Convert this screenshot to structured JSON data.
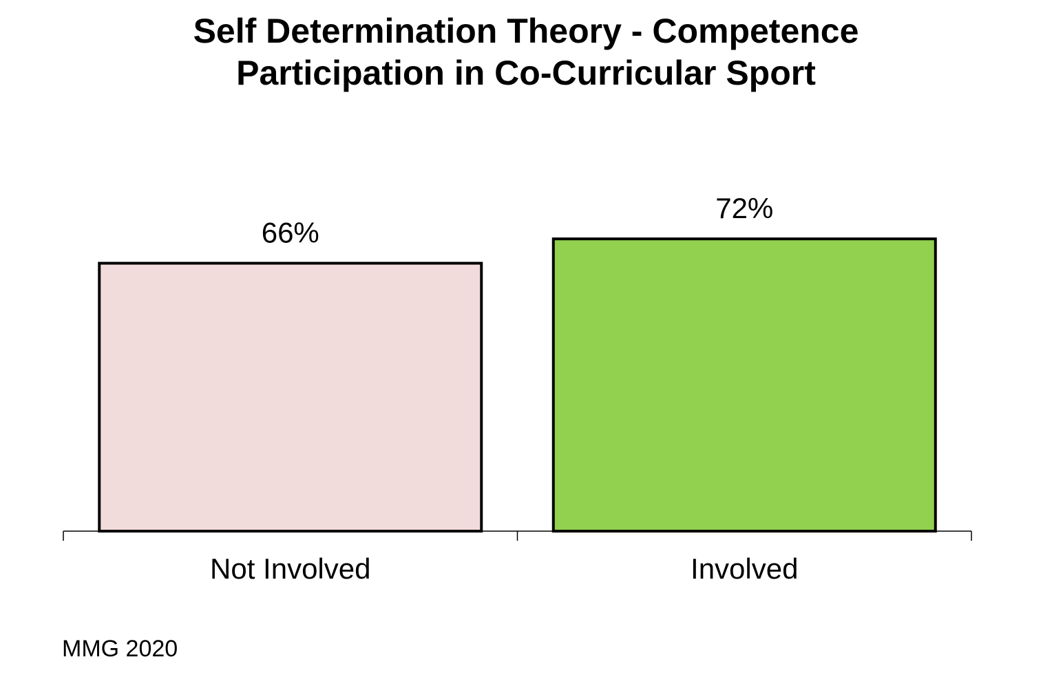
{
  "chart_data": {
    "type": "bar",
    "title": "Self Determination Theory - Competence",
    "subtitle": "Participation in Co-Curricular Sport",
    "categories": [
      "Not Involved",
      "Involved"
    ],
    "values": [
      66,
      72
    ],
    "value_labels": [
      "66%",
      "72%"
    ],
    "colors": [
      "#f2dcdb",
      "#92d050"
    ],
    "ylim": [
      0,
      100
    ],
    "grid": false,
    "legend": "none",
    "xlabel": "",
    "ylabel": ""
  },
  "footer": {
    "text": "MMG 2020"
  }
}
